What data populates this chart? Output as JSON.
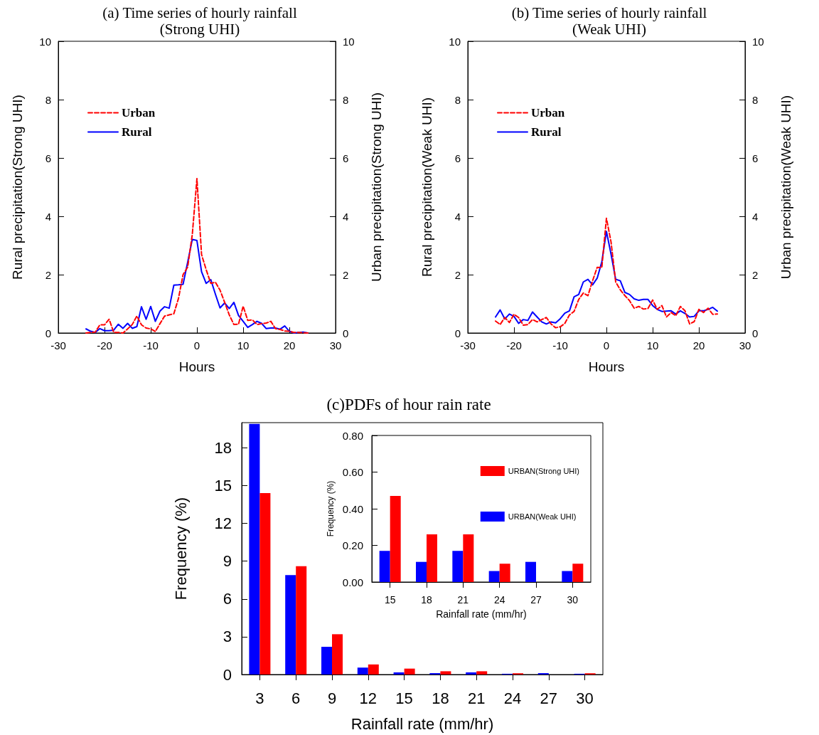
{
  "chart_data": [
    {
      "type": "line",
      "title": "(a) Time series of hourly rainfall",
      "subtitle": "(Strong UHI)",
      "xlabel": "Hours",
      "ylabel": "Rural precipitation(Strong UHI)",
      "y2label": "Urban precipitation(Strong UHI)",
      "x": [
        -24,
        -23,
        -22,
        -21,
        -20,
        -19,
        -18,
        -17,
        -16,
        -15,
        -14,
        -13,
        -12,
        -11,
        -10,
        -9,
        -8,
        -7,
        -6,
        -5,
        -4,
        -3,
        -2,
        -1,
        0,
        1,
        2,
        3,
        4,
        5,
        6,
        7,
        8,
        9,
        10,
        11,
        12,
        13,
        14,
        15,
        16,
        17,
        18,
        19,
        20,
        21,
        22,
        23,
        24
      ],
      "series": [
        {
          "name": "Urban",
          "color": "#ff0000",
          "line_style": "dashed",
          "values": [
            0,
            0.02,
            0.03,
            0.28,
            0.28,
            0.47,
            0.02,
            0.02,
            0,
            0.14,
            0.29,
            0.58,
            0.28,
            0.17,
            0.14,
            0.05,
            0.32,
            0.58,
            0.62,
            0.66,
            1.18,
            2.0,
            2.26,
            3.38,
            5.29,
            2.69,
            2.17,
            1.7,
            1.74,
            1.47,
            1.05,
            0.62,
            0.29,
            0.3,
            0.92,
            0.43,
            0.45,
            0.29,
            0.32,
            0.34,
            0.4,
            0.15,
            0.12,
            0.07,
            0.06,
            0.02,
            0.02,
            0.01,
            0
          ]
        },
        {
          "name": "Rural",
          "color": "#0000ff",
          "line_style": "solid",
          "values": [
            0.14,
            0.06,
            0.02,
            0.15,
            0.08,
            0.08,
            0.1,
            0.3,
            0.16,
            0.33,
            0.16,
            0.22,
            0.9,
            0.47,
            0.91,
            0.4,
            0.75,
            0.9,
            0.85,
            1.64,
            1.65,
            1.67,
            2.43,
            3.21,
            3.17,
            2.1,
            1.7,
            1.83,
            1.33,
            0.86,
            1.03,
            0.84,
            1.05,
            0.6,
            0.4,
            0.19,
            0.29,
            0.4,
            0.33,
            0.15,
            0.17,
            0.17,
            0.13,
            0.24,
            0.06,
            0,
            0.02,
            0.03,
            0
          ]
        }
      ],
      "xlim": [
        -30,
        30
      ],
      "xticks": [
        -30,
        -20,
        -10,
        0,
        10,
        20,
        30
      ],
      "ylim": [
        0,
        10
      ],
      "yticks": [
        0,
        2,
        4,
        6,
        8,
        10
      ],
      "y2lim": [
        0,
        10
      ],
      "y2ticks": [
        0,
        2,
        4,
        6,
        8,
        10
      ],
      "marker": "none",
      "grid": false,
      "legend": "top left"
    },
    {
      "type": "line",
      "title": "(b) Time series of hourly rainfall",
      "subtitle": "(Weak UHI)",
      "xlabel": "Hours",
      "ylabel": "Rural precipitation(Weak UHI)",
      "y2label": "Urban precipitation(Weak UHI)",
      "x": [
        -24,
        -23,
        -22,
        -21,
        -20,
        -19,
        -18,
        -17,
        -16,
        -15,
        -14,
        -13,
        -12,
        -11,
        -10,
        -9,
        -8,
        -7,
        -6,
        -5,
        -4,
        -3,
        -2,
        -1,
        0,
        1,
        2,
        3,
        4,
        5,
        6,
        7,
        8,
        9,
        10,
        11,
        12,
        13,
        14,
        15,
        16,
        17,
        18,
        19,
        20,
        21,
        22,
        23,
        24
      ],
      "series": [
        {
          "name": "Urban",
          "color": "#ff0000",
          "line_style": "dashed",
          "values": [
            0.41,
            0.29,
            0.53,
            0.36,
            0.64,
            0.53,
            0.27,
            0.29,
            0.46,
            0.38,
            0.46,
            0.53,
            0.31,
            0.18,
            0.21,
            0.33,
            0.62,
            0.74,
            1.15,
            1.37,
            1.28,
            1.79,
            2.25,
            2.24,
            3.93,
            3.12,
            1.75,
            1.48,
            1.28,
            1.11,
            0.85,
            0.91,
            0.82,
            0.84,
            1.13,
            0.81,
            0.94,
            0.55,
            0.7,
            0.59,
            0.91,
            0.76,
            0.31,
            0.39,
            0.81,
            0.7,
            0.85,
            0.64,
            0.65
          ]
        },
        {
          "name": "Rural",
          "color": "#0000ff",
          "line_style": "solid",
          "values": [
            0.55,
            0.79,
            0.48,
            0.65,
            0.57,
            0.33,
            0.46,
            0.43,
            0.72,
            0.55,
            0.38,
            0.31,
            0.38,
            0.35,
            0.49,
            0.68,
            0.76,
            1.24,
            1.32,
            1.75,
            1.84,
            1.65,
            1.88,
            2.44,
            3.48,
            2.7,
            1.84,
            1.79,
            1.39,
            1.32,
            1.17,
            1.12,
            1.15,
            1.15,
            0.94,
            0.81,
            0.74,
            0.75,
            0.76,
            0.65,
            0.76,
            0.67,
            0.55,
            0.57,
            0.76,
            0.76,
            0.81,
            0.88,
            0.75
          ]
        }
      ],
      "xlim": [
        -30,
        30
      ],
      "xticks": [
        -30,
        -20,
        -10,
        0,
        10,
        20,
        30
      ],
      "ylim": [
        0,
        10
      ],
      "yticks": [
        0,
        2,
        4,
        6,
        8,
        10
      ],
      "y2lim": [
        0,
        10
      ],
      "y2ticks": [
        0,
        2,
        4,
        6,
        8,
        10
      ],
      "marker": "none",
      "grid": false,
      "legend": "top left"
    },
    {
      "type": "bar",
      "title": "(c)PDFs of hour rain rate",
      "xlabel": "Rainfall rate (mm/hr)",
      "ylabel": "Frequency (%)",
      "categories": [
        "3",
        "6",
        "9",
        "12",
        "15",
        "18",
        "21",
        "24",
        "27",
        "30"
      ],
      "series": [
        {
          "color": "#0000ff",
          "values": [
            19.9,
            7.9,
            2.2,
            0.55,
            0.17,
            0.11,
            0.17,
            0.06,
            0.11,
            0.06
          ]
        },
        {
          "color": "#ff0000",
          "values": [
            14.4,
            8.6,
            3.2,
            0.8,
            0.47,
            0.26,
            0.26,
            0.1,
            0,
            0.1
          ]
        }
      ],
      "ylim": [
        0,
        20
      ],
      "yticks": [
        0,
        3,
        6,
        9,
        12,
        15,
        18
      ],
      "grid": false,
      "legend": false
    },
    {
      "type": "bar",
      "xlabel": "Rainfall rate (mm/hr)",
      "ylabel": "Frequency (%)",
      "categories": [
        "15",
        "18",
        "21",
        "24",
        "27",
        "30"
      ],
      "series": [
        {
          "name": "URBAN(Weak UHI)",
          "color": "#0000ff",
          "values": [
            0.17,
            0.11,
            0.17,
            0.06,
            0.11,
            0.06
          ]
        },
        {
          "name": "URBAN(Strong UHI)",
          "color": "#ff0000",
          "values": [
            0.47,
            0.26,
            0.26,
            0.1,
            0,
            0.1
          ]
        }
      ],
      "ylim": [
        0,
        0.8
      ],
      "yticks": [
        {
          "value": 0,
          "label": "0.00"
        },
        {
          "value": 0.2,
          "label": "0.20"
        },
        {
          "value": 0.4,
          "label": "0.40"
        },
        {
          "value": 0.6,
          "label": "0.60"
        },
        {
          "value": 0.8,
          "label": "0.80"
        }
      ],
      "grid": false,
      "legend": "top right"
    }
  ]
}
